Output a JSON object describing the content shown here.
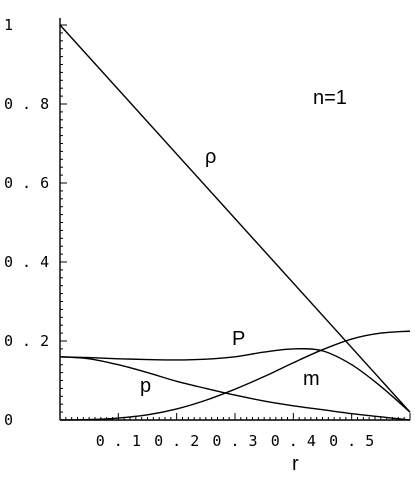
{
  "chart_data": {
    "type": "line",
    "xlabel": "r",
    "ylabel": "",
    "xlim": [
      0,
      0.6
    ],
    "ylim": [
      0,
      1.0
    ],
    "x_ticks": [
      {
        "value": 0.1,
        "label": "0 . 1"
      },
      {
        "value": 0.2,
        "label": "0 . 2"
      },
      {
        "value": 0.3,
        "label": "0 . 3"
      },
      {
        "value": 0.4,
        "label": "0 . 4"
      },
      {
        "value": 0.5,
        "label": "0 . 5"
      }
    ],
    "y_ticks": [
      {
        "value": 0.0,
        "label": "0"
      },
      {
        "value": 0.2,
        "label": "0 . 2"
      },
      {
        "value": 0.4,
        "label": "0 . 4"
      },
      {
        "value": 0.6,
        "label": "0 . 6"
      },
      {
        "value": 0.8,
        "label": "0 . 8"
      },
      {
        "value": 1.0,
        "label": "1"
      }
    ],
    "annotation": "n=1",
    "grid": false,
    "series": [
      {
        "name": "ρ",
        "x": [
          0,
          0.6
        ],
        "y": [
          1.0,
          0.02
        ]
      },
      {
        "name": "P",
        "x": [
          0,
          0.05,
          0.1,
          0.15,
          0.2,
          0.25,
          0.3,
          0.35,
          0.4,
          0.45,
          0.5,
          0.55,
          0.6
        ],
        "y": [
          0.16,
          0.158,
          0.155,
          0.153,
          0.152,
          0.154,
          0.16,
          0.172,
          0.18,
          0.175,
          0.14,
          0.085,
          0.02
        ]
      },
      {
        "name": "p",
        "x": [
          0,
          0.05,
          0.1,
          0.15,
          0.2,
          0.25,
          0.3,
          0.35,
          0.4,
          0.45,
          0.5,
          0.55,
          0.6
        ],
        "y": [
          0.16,
          0.155,
          0.14,
          0.12,
          0.098,
          0.08,
          0.063,
          0.048,
          0.036,
          0.026,
          0.016,
          0.008,
          0.0
        ]
      },
      {
        "name": "m",
        "x": [
          0,
          0.05,
          0.1,
          0.15,
          0.2,
          0.25,
          0.3,
          0.35,
          0.4,
          0.45,
          0.5,
          0.55,
          0.6
        ],
        "y": [
          0.0,
          0.001,
          0.005,
          0.013,
          0.028,
          0.05,
          0.078,
          0.11,
          0.145,
          0.178,
          0.205,
          0.22,
          0.225
        ]
      }
    ]
  }
}
